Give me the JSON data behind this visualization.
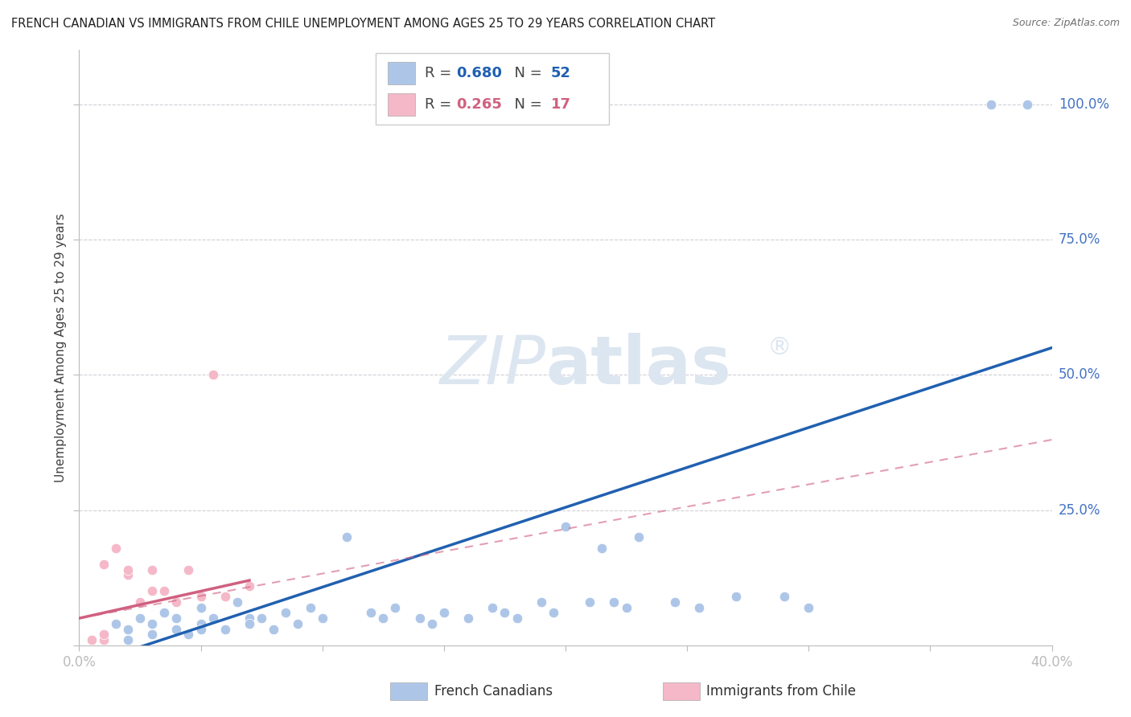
{
  "title": "FRENCH CANADIAN VS IMMIGRANTS FROM CHILE UNEMPLOYMENT AMONG AGES 25 TO 29 YEARS CORRELATION CHART",
  "source": "Source: ZipAtlas.com",
  "ylabel": "Unemployment Among Ages 25 to 29 years",
  "xmin": 0.0,
  "xmax": 40.0,
  "ymin": 0.0,
  "ymax": 110.0,
  "xticks": [
    0.0,
    5.0,
    10.0,
    15.0,
    20.0,
    25.0,
    30.0,
    35.0,
    40.0
  ],
  "xtick_labels": [
    "0.0%",
    "",
    "",
    "",
    "",
    "",
    "",
    "",
    "40.0%"
  ],
  "ytick_vals": [
    0.0,
    25.0,
    50.0,
    75.0,
    100.0
  ],
  "ytick_labels": [
    "",
    "25.0%",
    "50.0%",
    "75.0%",
    "100.0%"
  ],
  "french_canadians_R": 0.68,
  "french_canadians_N": 52,
  "immigrants_chile_R": 0.265,
  "immigrants_chile_N": 17,
  "blue_color": "#adc6e8",
  "blue_line_color": "#2060b0",
  "pink_color": "#f5b8c8",
  "pink_line_color": "#d06080",
  "watermark_color": "#dce6f0",
  "grid_color": "#d0d0d8",
  "axis_label_color": "#4472c4",
  "title_color": "#202020",
  "source_color": "#707070",
  "blue_scatter": [
    [
      1.0,
      2.0
    ],
    [
      1.0,
      1.0
    ],
    [
      1.5,
      4.0
    ],
    [
      2.0,
      3.0
    ],
    [
      2.0,
      1.0
    ],
    [
      2.5,
      5.0
    ],
    [
      3.0,
      4.0
    ],
    [
      3.0,
      2.0
    ],
    [
      3.5,
      6.0
    ],
    [
      4.0,
      3.0
    ],
    [
      4.0,
      5.0
    ],
    [
      4.5,
      2.0
    ],
    [
      5.0,
      4.0
    ],
    [
      5.0,
      7.0
    ],
    [
      5.0,
      3.0
    ],
    [
      5.5,
      5.0
    ],
    [
      6.0,
      3.0
    ],
    [
      6.5,
      8.0
    ],
    [
      7.0,
      5.0
    ],
    [
      7.0,
      4.0
    ],
    [
      7.5,
      5.0
    ],
    [
      8.0,
      3.0
    ],
    [
      8.5,
      6.0
    ],
    [
      9.0,
      4.0
    ],
    [
      9.5,
      7.0
    ],
    [
      10.0,
      5.0
    ],
    [
      11.0,
      20.0
    ],
    [
      12.0,
      6.0
    ],
    [
      12.5,
      5.0
    ],
    [
      13.0,
      7.0
    ],
    [
      14.0,
      5.0
    ],
    [
      14.5,
      4.0
    ],
    [
      15.0,
      6.0
    ],
    [
      16.0,
      5.0
    ],
    [
      17.0,
      7.0
    ],
    [
      17.5,
      6.0
    ],
    [
      18.0,
      5.0
    ],
    [
      19.0,
      8.0
    ],
    [
      19.5,
      6.0
    ],
    [
      20.0,
      22.0
    ],
    [
      21.0,
      8.0
    ],
    [
      21.5,
      18.0
    ],
    [
      22.0,
      8.0
    ],
    [
      22.5,
      7.0
    ],
    [
      23.0,
      20.0
    ],
    [
      24.5,
      8.0
    ],
    [
      25.5,
      7.0
    ],
    [
      27.0,
      9.0
    ],
    [
      29.0,
      9.0
    ],
    [
      30.0,
      7.0
    ],
    [
      37.5,
      100.0
    ],
    [
      39.0,
      100.0
    ]
  ],
  "pink_scatter": [
    [
      0.5,
      1.0
    ],
    [
      1.0,
      1.0
    ],
    [
      1.0,
      2.0
    ],
    [
      1.0,
      15.0
    ],
    [
      1.5,
      18.0
    ],
    [
      2.0,
      13.0
    ],
    [
      2.0,
      14.0
    ],
    [
      2.5,
      8.0
    ],
    [
      3.0,
      14.0
    ],
    [
      3.0,
      10.0
    ],
    [
      3.5,
      10.0
    ],
    [
      4.0,
      8.0
    ],
    [
      4.5,
      14.0
    ],
    [
      5.0,
      9.0
    ],
    [
      5.5,
      50.0
    ],
    [
      6.0,
      9.0
    ],
    [
      7.0,
      11.0
    ]
  ],
  "blue_reg": [
    0.0,
    40.0,
    -4.0,
    55.0
  ],
  "pink_reg_dashed": [
    0.0,
    40.0,
    5.0,
    38.0
  ],
  "pink_reg_solid": [
    0.0,
    7.0,
    5.0,
    12.0
  ],
  "background_color": "#ffffff",
  "title_fontsize": 10.5,
  "legend_fontsize": 12,
  "ylabel_fontsize": 11,
  "marker_size": 80
}
